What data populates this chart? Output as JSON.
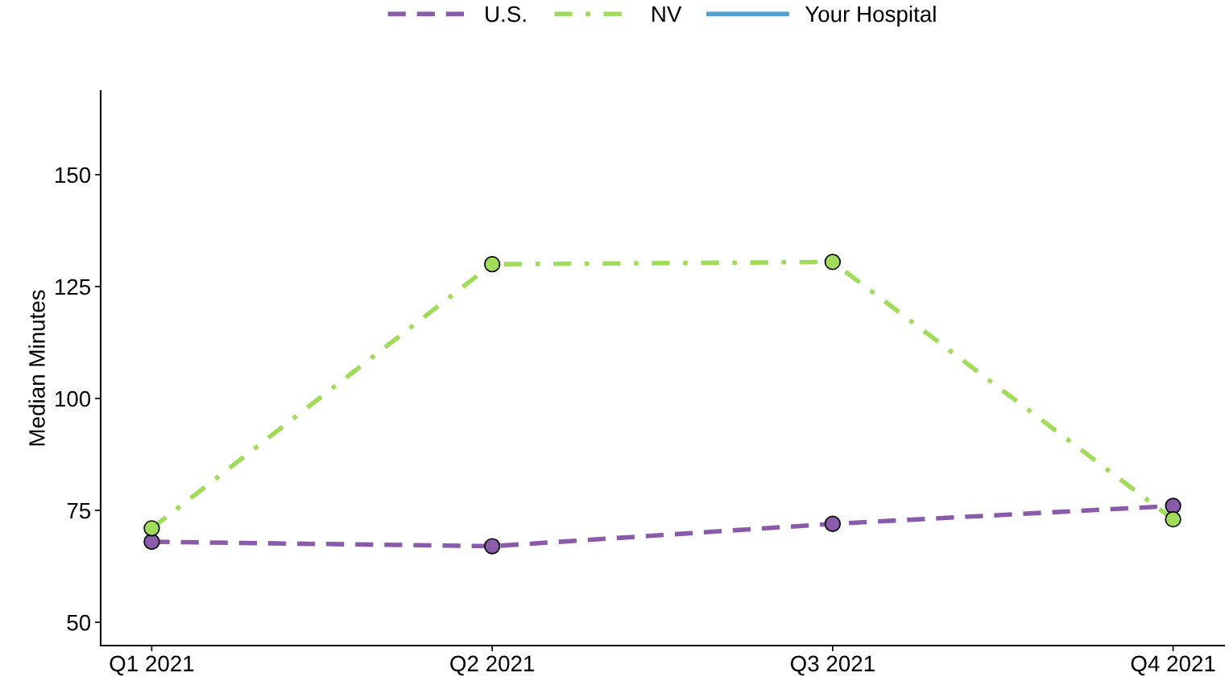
{
  "chart_data": {
    "type": "line",
    "ylabel": "Median Minutes",
    "categories": [
      "Q1 2021",
      "Q2 2021",
      "Q3 2021",
      "Q4 2021"
    ],
    "series": [
      {
        "name": "U.S.",
        "color": "#8a5aab",
        "values": [
          68,
          67,
          72,
          76
        ],
        "line_style": "dashed",
        "marker": "circle"
      },
      {
        "name": "NV",
        "color": "#a0dc5a",
        "values": [
          71,
          130,
          130.5,
          73
        ],
        "line_style": "dashdot",
        "marker": "circle"
      },
      {
        "name": "Your Hospital",
        "color": "#4aa3cf",
        "values": [
          null,
          null,
          null,
          null
        ],
        "line_style": "solid",
        "marker": "none"
      }
    ],
    "ylim": [
      44.8,
      168.7
    ],
    "yticks": [
      50,
      75,
      100,
      125,
      150
    ],
    "grid": false,
    "legend": "top"
  }
}
